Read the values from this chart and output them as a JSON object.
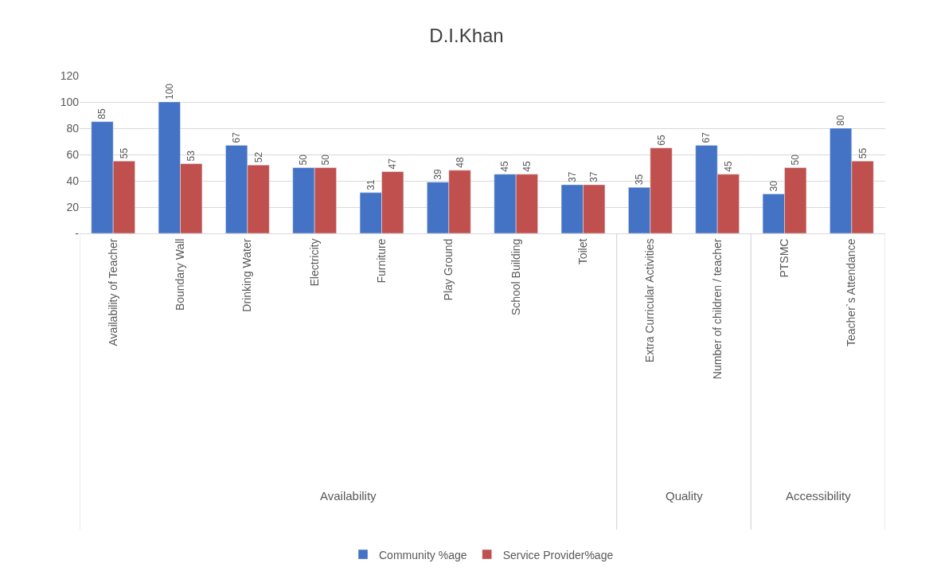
{
  "chart_data": {
    "type": "bar",
    "title": "D.I.Khan",
    "categories": [
      "Availability of Teacher",
      "Boundary Wall",
      "Drinking Water",
      "Electricity",
      "Furniture",
      "Play Ground",
      "School Building",
      "Toilet",
      "Extra Curricular Activities",
      "Number of children / teacher",
      "PTSMC",
      "Teacher`s Attendance"
    ],
    "series": [
      {
        "name": "Community %age",
        "color": "#4472c4",
        "values": [
          85,
          100,
          67,
          50,
          31,
          39,
          45,
          37,
          35,
          67,
          30,
          80
        ]
      },
      {
        "name": "Service Provider%age",
        "color": "#c0504d",
        "values": [
          55,
          53,
          52,
          50,
          47,
          48,
          45,
          37,
          65,
          45,
          50,
          55
        ]
      }
    ],
    "annotations": [
      "Availability",
      "Quality",
      "Accessibility"
    ],
    "ylim": [
      0,
      120
    ],
    "yticks": [
      {
        "value": 0,
        "label": "-"
      },
      20,
      40,
      60,
      80,
      100,
      120
    ],
    "data_labels": true,
    "grid": "y",
    "legend": "bottom"
  }
}
